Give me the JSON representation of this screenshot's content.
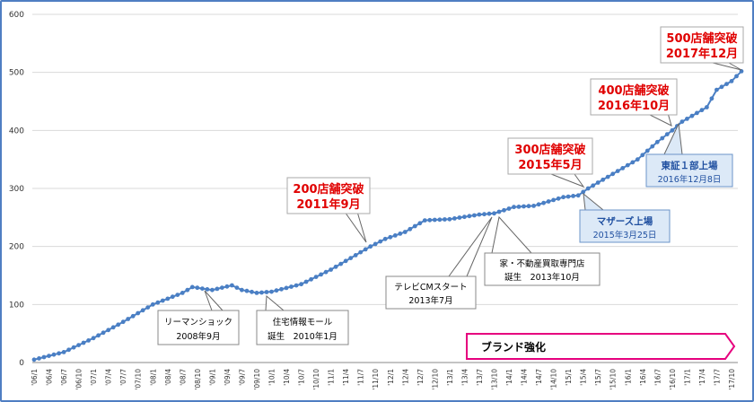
{
  "chart_data": {
    "type": "line",
    "ylim": [
      0,
      600
    ],
    "y_ticks": [
      "0",
      "100",
      "200",
      "300",
      "400",
      "500",
      "600"
    ],
    "x_tick_labels": [
      "'06/1",
      "'06/4",
      "'06/7",
      "'06/10",
      "'07/1",
      "'07/4",
      "'07/7",
      "'07/10",
      "'08/1",
      "'08/4",
      "'08/7",
      "'08/10",
      "'09/1",
      "'09/4",
      "'09/7",
      "'09/10",
      "'10/1",
      "'10/4",
      "'10/7",
      "'10/10",
      "'11/1",
      "'11/4",
      "'11/7",
      "'11/10",
      "'12/1",
      "'12/4",
      "'12/7",
      "'12/10",
      "'13/1",
      "'13/4",
      "'13/7",
      "'13/10",
      "'14/1",
      "'14/4",
      "'14/7",
      "'14/10",
      "'15/1",
      "'15/4",
      "'15/7",
      "'15/10",
      "'16/1",
      "'16/4",
      "'16/7",
      "'16/10",
      "'17/1",
      "'17/4",
      "'17/7",
      "'17/10"
    ],
    "grid": true,
    "series_color": "#4a7fc4",
    "anchors": [
      {
        "x": "2006-01",
        "y": 5
      },
      {
        "x": "2006-07",
        "y": 18
      },
      {
        "x": "2007-01",
        "y": 42
      },
      {
        "x": "2007-07",
        "y": 70
      },
      {
        "x": "2008-01",
        "y": 100
      },
      {
        "x": "2008-07",
        "y": 120
      },
      {
        "x": "2008-09",
        "y": 130
      },
      {
        "x": "2009-01",
        "y": 125
      },
      {
        "x": "2009-05",
        "y": 133
      },
      {
        "x": "2009-07",
        "y": 125
      },
      {
        "x": "2009-10",
        "y": 120
      },
      {
        "x": "2010-01",
        "y": 122
      },
      {
        "x": "2010-07",
        "y": 135
      },
      {
        "x": "2011-01",
        "y": 160
      },
      {
        "x": "2011-07",
        "y": 190
      },
      {
        "x": "2011-09",
        "y": 200
      },
      {
        "x": "2011-12",
        "y": 213
      },
      {
        "x": "2012-04",
        "y": 225
      },
      {
        "x": "2012-08",
        "y": 245
      },
      {
        "x": "2013-01",
        "y": 247
      },
      {
        "x": "2013-07",
        "y": 255
      },
      {
        "x": "2013-10",
        "y": 257
      },
      {
        "x": "2014-02",
        "y": 268
      },
      {
        "x": "2014-06",
        "y": 270
      },
      {
        "x": "2014-12",
        "y": 285
      },
      {
        "x": "2015-03",
        "y": 288
      },
      {
        "x": "2015-05",
        "y": 300
      },
      {
        "x": "2015-10",
        "y": 325
      },
      {
        "x": "2016-03",
        "y": 350
      },
      {
        "x": "2016-07",
        "y": 380
      },
      {
        "x": "2016-10",
        "y": 400
      },
      {
        "x": "2016-12",
        "y": 415
      },
      {
        "x": "2017-03",
        "y": 430
      },
      {
        "x": "2017-05",
        "y": 440
      },
      {
        "x": "2017-07",
        "y": 470
      },
      {
        "x": "2017-10",
        "y": 485
      },
      {
        "x": "2017-12",
        "y": 502
      }
    ]
  },
  "annotations": {
    "red": [
      {
        "line1": "200店舗突破",
        "line2": "2011年9月"
      },
      {
        "line1": "300店舗突破",
        "line2": "2015年5月"
      },
      {
        "line1": "400店舗突破",
        "line2": "2016年10月"
      },
      {
        "line1": "500店舗突破",
        "line2": "2017年12月"
      }
    ],
    "black": [
      {
        "line1": "リーマンショック",
        "line2": "2008年9月"
      },
      {
        "line1": "住宅情報モール",
        "line2": "誕生　2010年1月"
      },
      {
        "line1": "テレビCMスタート",
        "line2": "2013年7月"
      },
      {
        "line1": "家・不動産買取専門店",
        "line2": "誕生　2013年10月"
      }
    ],
    "blue": [
      {
        "line1": "マザーズ上場",
        "line2": "2015年3月25日"
      },
      {
        "line1": "東証１部上場",
        "line2": "2016年12月8日"
      }
    ],
    "brand_arrow": "ブランド強化"
  },
  "colors": {
    "accent_red": "#e00000",
    "line_blue": "#4a7fc4",
    "brand_magenta": "#e6007e",
    "blue_callout_fill": "#dce9f7"
  }
}
